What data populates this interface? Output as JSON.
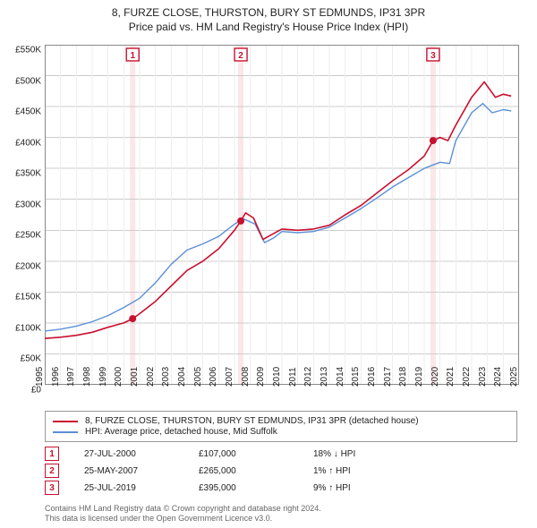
{
  "title_line1": "8, FURZE CLOSE, THURSTON, BURY ST EDMUNDS, IP31 3PR",
  "title_line2": "Price paid vs. HM Land Registry's House Price Index (HPI)",
  "chart": {
    "type": "line",
    "background_color": "#ffffff",
    "grid_color_major": "#cccccc",
    "grid_color_minor": "#eeeeee",
    "ylim": [
      0,
      550000
    ],
    "ytick_step": 50000,
    "yticks": [
      "£0",
      "£50K",
      "£100K",
      "£150K",
      "£200K",
      "£250K",
      "£300K",
      "£350K",
      "£400K",
      "£450K",
      "£500K",
      "£550K"
    ],
    "xlim": [
      1995,
      2025
    ],
    "xticks": [
      1995,
      1996,
      1997,
      1998,
      1999,
      2000,
      2001,
      2002,
      2003,
      2004,
      2005,
      2006,
      2007,
      2008,
      2009,
      2010,
      2011,
      2012,
      2013,
      2014,
      2015,
      2016,
      2017,
      2018,
      2019,
      2020,
      2021,
      2022,
      2023,
      2024,
      2025
    ],
    "label_fontsize": 10,
    "series": {
      "property": {
        "color": "#c8102e",
        "width": 1.6,
        "label": "8, FURZE CLOSE, THURSTON, BURY ST EDMUNDS, IP31 3PR (detached house)",
        "points": [
          [
            1995,
            75000
          ],
          [
            1996,
            77000
          ],
          [
            1997,
            80000
          ],
          [
            1998,
            85000
          ],
          [
            1999,
            93000
          ],
          [
            2000,
            100000
          ],
          [
            2000.56,
            107000
          ],
          [
            2001,
            115000
          ],
          [
            2002,
            135000
          ],
          [
            2003,
            160000
          ],
          [
            2004,
            185000
          ],
          [
            2005,
            200000
          ],
          [
            2006,
            220000
          ],
          [
            2007,
            250000
          ],
          [
            2007.4,
            265000
          ],
          [
            2007.7,
            278000
          ],
          [
            2008.2,
            270000
          ],
          [
            2008.8,
            235000
          ],
          [
            2009.5,
            245000
          ],
          [
            2010,
            252000
          ],
          [
            2011,
            250000
          ],
          [
            2012,
            252000
          ],
          [
            2013,
            258000
          ],
          [
            2014,
            275000
          ],
          [
            2015,
            290000
          ],
          [
            2016,
            310000
          ],
          [
            2017,
            330000
          ],
          [
            2018,
            348000
          ],
          [
            2019,
            370000
          ],
          [
            2019.56,
            395000
          ],
          [
            2020,
            400000
          ],
          [
            2020.5,
            395000
          ],
          [
            2021,
            420000
          ],
          [
            2022,
            465000
          ],
          [
            2022.8,
            490000
          ],
          [
            2023.5,
            465000
          ],
          [
            2024,
            470000
          ],
          [
            2024.5,
            467000
          ]
        ]
      },
      "hpi": {
        "color": "#5b8fd6",
        "width": 1.4,
        "label": "HPI: Average price, detached house, Mid Suffolk",
        "points": [
          [
            1995,
            87000
          ],
          [
            1996,
            90000
          ],
          [
            1997,
            95000
          ],
          [
            1998,
            102000
          ],
          [
            1999,
            112000
          ],
          [
            2000,
            125000
          ],
          [
            2001,
            140000
          ],
          [
            2002,
            165000
          ],
          [
            2003,
            195000
          ],
          [
            2004,
            218000
          ],
          [
            2005,
            228000
          ],
          [
            2006,
            240000
          ],
          [
            2007,
            260000
          ],
          [
            2007.6,
            268000
          ],
          [
            2008.3,
            260000
          ],
          [
            2008.9,
            230000
          ],
          [
            2009.5,
            238000
          ],
          [
            2010,
            248000
          ],
          [
            2011,
            246000
          ],
          [
            2012,
            248000
          ],
          [
            2013,
            255000
          ],
          [
            2014,
            270000
          ],
          [
            2015,
            285000
          ],
          [
            2016,
            302000
          ],
          [
            2017,
            320000
          ],
          [
            2018,
            335000
          ],
          [
            2019,
            350000
          ],
          [
            2020,
            360000
          ],
          [
            2020.6,
            358000
          ],
          [
            2021,
            395000
          ],
          [
            2022,
            440000
          ],
          [
            2022.7,
            455000
          ],
          [
            2023.3,
            440000
          ],
          [
            2024,
            445000
          ],
          [
            2024.5,
            443000
          ]
        ]
      }
    },
    "sale_markers": [
      {
        "n": "1",
        "year": 2000.56,
        "price": 107000
      },
      {
        "n": "2",
        "year": 2007.4,
        "price": 265000
      },
      {
        "n": "3",
        "year": 2019.56,
        "price": 395000
      }
    ],
    "marker_band_color": "#fbe6e8",
    "sale_dot_color": "#c8102e",
    "sale_dot_radius": 4
  },
  "legend": {
    "items": [
      {
        "color": "#c8102e",
        "key": "chart.series.property.label"
      },
      {
        "color": "#5b8fd6",
        "key": "chart.series.hpi.label"
      }
    ]
  },
  "sales": [
    {
      "n": "1",
      "date": "27-JUL-2000",
      "price": "£107,000",
      "delta": "18% ↓ HPI"
    },
    {
      "n": "2",
      "date": "25-MAY-2007",
      "price": "£265,000",
      "delta": "1% ↑ HPI"
    },
    {
      "n": "3",
      "date": "25-JUL-2019",
      "price": "£395,000",
      "delta": "9% ↑ HPI"
    }
  ],
  "attribution_line1": "Contains HM Land Registry data © Crown copyright and database right 2024.",
  "attribution_line2": "This data is licensed under the Open Government Licence v3.0."
}
